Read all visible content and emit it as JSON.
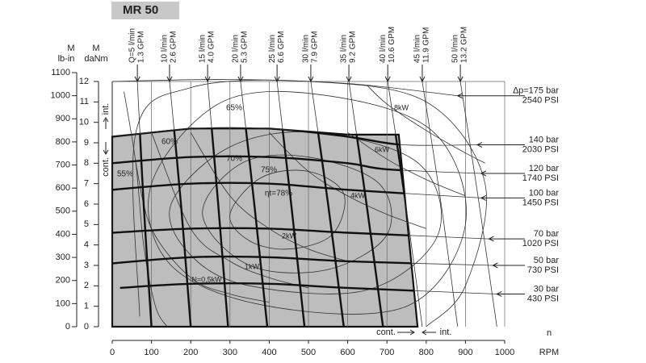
{
  "chart_data": {
    "type": "line",
    "title": "MR 50",
    "y_label_outer": [
      "M",
      "lb-in"
    ],
    "y_label_inner": [
      "M",
      "daNm"
    ],
    "x_label": "RPM",
    "x_symbol": "n",
    "annotations": {
      "int_left": "int.",
      "cont_left": "cont.",
      "cont_bottom": "cont.",
      "int_bottom": "int."
    },
    "xlim": [
      0,
      1000
    ],
    "xticks": [
      0,
      100,
      200,
      300,
      400,
      500,
      600,
      700,
      800,
      900,
      1000
    ],
    "ylim": [
      0,
      12
    ],
    "yticks": [
      0,
      1,
      2,
      3,
      4,
      5,
      6,
      7,
      8,
      9,
      10,
      11,
      12
    ],
    "y2lim": [
      0,
      1100
    ],
    "y2ticks": [
      0,
      100,
      200,
      300,
      400,
      500,
      600,
      700,
      800,
      900,
      1000,
      1100
    ],
    "grid": "x",
    "continuous_region": {
      "color": "#bdbdbd",
      "x": [
        0,
        0,
        200,
        400,
        600,
        730,
        778
      ],
      "values": [
        0,
        9.3,
        9.7,
        9.7,
        9.4,
        9.4,
        0
      ]
    },
    "flow_lines": [
      {
        "label": "Q=5 l/min",
        "gpm": "1.3 GPM",
        "x": [
          64,
          80,
          100
        ],
        "values": [
          12,
          6,
          0
        ]
      },
      {
        "label": "10 l/min",
        "gpm": "2.6 GPM",
        "x": [
          146,
          175,
          200
        ],
        "values": [
          12,
          6,
          0
        ]
      },
      {
        "label": "15 l/min",
        "gpm": "4.0 GPM",
        "x": [
          243,
          270,
          295
        ],
        "values": [
          12,
          6,
          0
        ]
      },
      {
        "label": "20 l/min",
        "gpm": "5.3 GPM",
        "x": [
          327,
          362,
          395
        ],
        "values": [
          12,
          6,
          0
        ]
      },
      {
        "label": "25 l/min",
        "gpm": "6.6 GPM",
        "x": [
          420,
          456,
          490
        ],
        "values": [
          12,
          6,
          0
        ]
      },
      {
        "label": "30 l/min",
        "gpm": "7.9 GPM",
        "x": [
          506,
          550,
          590
        ],
        "values": [
          12,
          6,
          0
        ]
      },
      {
        "label": "35 l/min",
        "gpm": "9.2 GPM",
        "x": [
          603,
          648,
          690
        ],
        "values": [
          12,
          6,
          0
        ]
      },
      {
        "label": "40 l/min",
        "gpm": "10.6 GPM",
        "x": [
          702,
          748,
          790
        ],
        "values": [
          12,
          6,
          0
        ]
      },
      {
        "label": "45 l/min",
        "gpm": "11.9 GPM",
        "x": [
          790,
          838,
          880
        ],
        "values": [
          12,
          6,
          0
        ]
      },
      {
        "label": "50 l/min",
        "gpm": "13.2 GPM",
        "x": [
          887,
          935,
          980
        ],
        "values": [
          12,
          6,
          0
        ]
      }
    ],
    "pressure_curves": [
      {
        "bar": "∆p=175 bar",
        "psi": "2540 PSI",
        "x": [
          0,
          300,
          600,
          880
        ],
        "values": [
          12,
          12.1,
          11.9,
          11.3
        ]
      },
      {
        "bar": "140 bar",
        "psi": "2030 PSI",
        "x": [
          0,
          200,
          400,
          600,
          740,
          930
        ],
        "values": [
          9.3,
          9.7,
          9.7,
          9.3,
          8.9,
          8.9
        ]
      },
      {
        "bar": "120 bar",
        "psi": "1740 PSI",
        "x": [
          0,
          200,
          400,
          600,
          700,
          940
        ],
        "values": [
          8.0,
          8.3,
          8.3,
          8.0,
          7.7,
          7.5
        ]
      },
      {
        "bar": "100 bar",
        "psi": "1450 PSI",
        "x": [
          0,
          200,
          400,
          600,
          940
        ],
        "values": [
          6.7,
          7.0,
          7.0,
          6.7,
          6.3
        ]
      },
      {
        "bar": "70 bar",
        "psi": "1020 PSI",
        "x": [
          0,
          200,
          400,
          600,
          960
        ],
        "values": [
          4.6,
          4.8,
          4.8,
          4.6,
          4.3
        ]
      },
      {
        "bar": "50 bar",
        "psi": "730 PSI",
        "x": [
          0,
          200,
          400,
          600,
          970
        ],
        "values": [
          3.1,
          3.4,
          3.4,
          3.2,
          3.0
        ]
      },
      {
        "bar": "30 bar",
        "psi": "430 PSI",
        "x": [
          20,
          200,
          400,
          600,
          980
        ],
        "values": [
          1.9,
          2.1,
          2.1,
          1.9,
          1.6
        ]
      }
    ],
    "power_curves": [
      {
        "label": "N=0,5kW",
        "x": [
          60,
          100,
          200,
          300,
          400
        ],
        "values": [
          8,
          4.8,
          2.4,
          1.6,
          1.2
        ]
      },
      {
        "label": "1kW",
        "x": [
          100,
          200,
          300,
          400,
          500
        ],
        "values": [
          9.5,
          4.8,
          3.2,
          2.4,
          1.9
        ]
      },
      {
        "label": "2kW",
        "x": [
          200,
          300,
          400,
          500,
          600
        ],
        "values": [
          9.5,
          6.4,
          4.8,
          3.8,
          3.2
        ]
      },
      {
        "label": "4kW",
        "x": [
          400,
          500,
          600,
          700,
          800
        ],
        "values": [
          9.5,
          7.6,
          6.4,
          5.5,
          4.8
        ]
      },
      {
        "label": "6kW",
        "x": [
          600,
          700,
          800,
          900
        ],
        "values": [
          9.5,
          8.2,
          7.2,
          6.4
        ]
      },
      {
        "label": "8kW",
        "x": [
          650,
          700,
          800,
          900,
          950
        ],
        "values": [
          11.8,
          10.9,
          9.6,
          8.5,
          8.0
        ]
      }
    ],
    "efficiency_contours": [
      {
        "label": "55%",
        "closed": false,
        "x": [
          30,
          60,
          80,
          110,
          140
        ],
        "values": [
          11.5,
          8,
          4,
          1,
          0
        ]
      },
      {
        "label": "60%",
        "closed": false,
        "x": [
          70,
          60,
          200,
          500,
          800,
          950,
          900,
          800
        ],
        "values": [
          0.5,
          9.5,
          11.7,
          12,
          11,
          7,
          2,
          0
        ]
      },
      {
        "label": "65%",
        "closed": true,
        "x": [
          100,
          280,
          550,
          820,
          900,
          750,
          400,
          150
        ],
        "values": [
          7,
          11,
          11.3,
          9.5,
          5,
          1,
          1,
          3
        ]
      },
      {
        "label": "70%",
        "closed": true,
        "x": [
          150,
          300,
          520,
          780,
          830,
          650,
          350,
          200
        ],
        "values": [
          6,
          8.8,
          9.5,
          8,
          4.5,
          1.8,
          2,
          3.5
        ]
      },
      {
        "label": "75%",
        "closed": true,
        "x": [
          230,
          330,
          500,
          680,
          700,
          550,
          350
        ],
        "values": [
          5.5,
          8.0,
          8.3,
          7.0,
          4.5,
          2.8,
          3.0
        ]
      },
      {
        "label": "ηt=78%",
        "closed": true,
        "x": [
          300,
          380,
          500,
          590,
          560,
          450,
          350
        ],
        "values": [
          5.5,
          7.3,
          7.6,
          6.5,
          4.5,
          3.8,
          4.2
        ]
      }
    ]
  }
}
